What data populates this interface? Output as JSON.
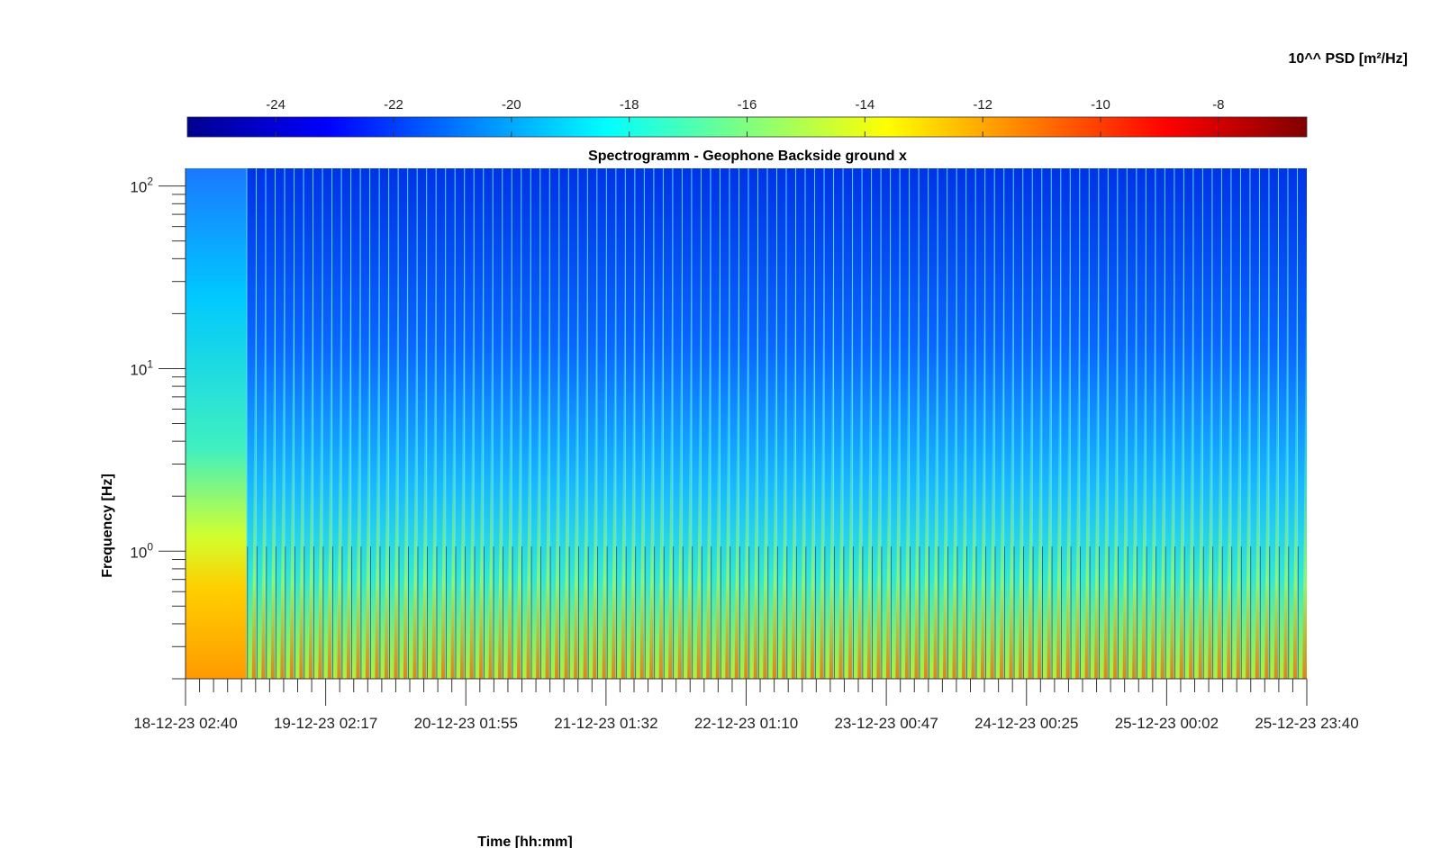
{
  "chart_data": {
    "type": "heatmap",
    "title": "Spectrogramm - Geophone Backside ground x",
    "xlabel": "Time [hh:mm]",
    "ylabel": "Frequency [Hz]",
    "yscale": "log",
    "ylim": [
      0.2,
      125
    ],
    "y_ticks": [
      {
        "value": 1,
        "base": "10",
        "exp": "0"
      },
      {
        "value": 10,
        "base": "10",
        "exp": "1"
      },
      {
        "value": 100,
        "base": "10",
        "exp": "2"
      }
    ],
    "x_tick_labels": [
      "18-12-23 02:40",
      "19-12-23 02:17",
      "20-12-23 01:55",
      "21-12-23 01:32",
      "22-12-23 01:10",
      "23-12-23 00:47",
      "24-12-23 00:25",
      "25-12-23 00:02",
      "25-12-23 23:40"
    ],
    "colorbar": {
      "label": "10^^ PSD [m²/Hz]",
      "range": [
        -25.5,
        -6.5
      ],
      "tick_labels": [
        "-24",
        "-22",
        "-20",
        "-18",
        "-16",
        "-14",
        "-12",
        "-10",
        "-8"
      ],
      "tick_values": [
        -24,
        -22,
        -20,
        -18,
        -16,
        -14,
        -12,
        -10,
        -8
      ],
      "colormap": "jet"
    },
    "bands": [
      {
        "name": "first segment",
        "psd_low_freq": -10.5,
        "psd_mid_freq": -15.5,
        "psd_high_freq": -19.5
      },
      {
        "name": "repeated segments",
        "psd_low_freq": -14.5,
        "psd_mid_freq": -19.0,
        "psd_high_freq": -21.5
      }
    ],
    "repeated_segments": 112
  }
}
